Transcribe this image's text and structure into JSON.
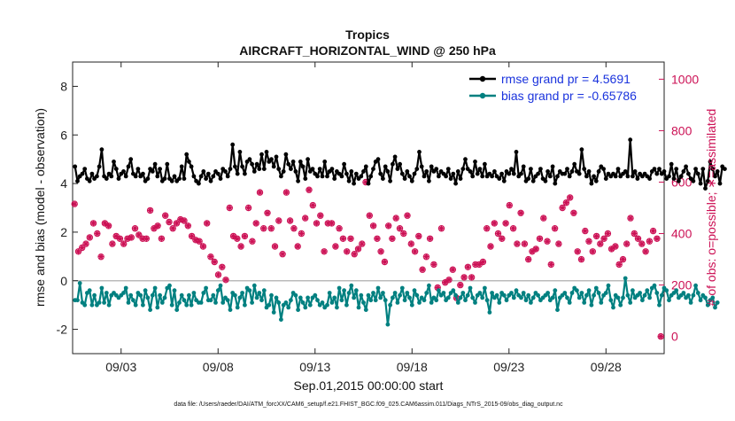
{
  "chart_data": {
    "type": "line",
    "title": "Tropics",
    "subtitle": "AIRCRAFT_HORIZONTAL_WIND @ 250 hPa",
    "xlabel": "Sep.01,2015 00:00:00 start",
    "ylabel_left": "rmse and bias (model - observation)",
    "ylabel_right": "# of obs: o=possible; ∗=assimilated",
    "footnote": "data file: /Users/raeder/DAI/ATM_forcXX/CAM6_setup/f.e21.FHIST_BGC.f09_025.CAM6assim.011/Diags_NTrS_2015-09/obs_diag_output.nc",
    "xlim": [
      0.5,
      31.0
    ],
    "ylim_left": [
      -3,
      9
    ],
    "ylim_right": [
      -66.7,
      1066.7
    ],
    "x_ticks": [
      {
        "x": 3,
        "label": "09/03"
      },
      {
        "x": 8,
        "label": "09/08"
      },
      {
        "x": 13,
        "label": "09/13"
      },
      {
        "x": 18,
        "label": "09/18"
      },
      {
        "x": 23,
        "label": "09/23"
      },
      {
        "x": 28,
        "label": "09/28"
      }
    ],
    "y_ticks_left": [
      "-2",
      "0",
      "2",
      "4",
      "6",
      "8"
    ],
    "y_ticks_left_values": [
      -2,
      0,
      2,
      4,
      6,
      8
    ],
    "y_ticks_right": [
      "0",
      "200",
      "400",
      "600",
      "800",
      "1000"
    ],
    "y_ticks_right_values": [
      0,
      200,
      400,
      600,
      800,
      1000
    ],
    "zero_line": 0,
    "colors": {
      "rmse": "#000000",
      "bias": "#008080",
      "count": "#cc1155",
      "zero": "#bbbbbb"
    },
    "series": [
      {
        "name": "rmse grand pr = 4.5691",
        "axis": "left",
        "values": [
          4.7,
          4.1,
          4.3,
          4.4,
          4.6,
          4.2,
          4.1,
          4.4,
          4.2,
          4.3,
          4.7,
          5.4,
          4.3,
          4.2,
          4.4,
          4.3,
          4.9,
          4.6,
          4.2,
          4.4,
          4.5,
          4.3,
          4.7,
          5.0,
          4.4,
          4.3,
          4.6,
          4.3,
          4.4,
          4.1,
          4.2,
          4.6,
          4.5,
          4.8,
          4.3,
          4.6,
          4.1,
          4.2,
          4.8,
          4.2,
          4.1,
          4.3,
          4.1,
          4.2,
          4.7,
          4.2,
          5.2,
          4.9,
          4.7,
          4.3,
          4.1,
          4.0,
          4.3,
          4.5,
          4.2,
          4.4,
          4.1,
          4.3,
          4.5,
          4.4,
          4.2,
          4.6,
          4.5,
          4.3,
          4.6,
          5.6,
          4.7,
          4.4,
          5.3,
          4.7,
          4.4,
          4.9,
          5.0,
          4.8,
          4.5,
          4.8,
          4.6,
          5.2,
          4.6,
          5.3,
          4.9,
          5.0,
          4.7,
          5.1,
          4.6,
          4.3,
          4.5,
          5.2,
          4.8,
          4.6,
          4.9,
          4.5,
          4.1,
          4.9,
          4.7,
          4.2,
          5.0,
          4.5,
          4.6,
          4.4,
          4.3,
          4.6,
          4.3,
          4.9,
          4.3,
          4.5,
          4.6,
          4.2,
          4.5,
          4.4,
          4.3,
          4.8,
          4.4,
          4.1,
          4.5,
          4.0,
          4.4,
          4.2,
          4.3,
          4.5,
          4.7,
          4.0,
          4.3,
          4.6,
          4.9,
          5.0,
          4.4,
          4.2,
          4.7,
          4.5,
          4.1,
          4.8,
          5.1,
          4.6,
          4.8,
          4.4,
          4.2,
          4.5,
          4.3,
          4.1,
          4.4,
          4.6,
          5.3,
          4.7,
          4.3,
          4.5,
          4.1,
          4.7,
          4.5,
          4.6,
          4.3,
          4.5,
          4.4,
          4.3,
          4.6,
          4.2,
          4.4,
          4.0,
          4.5,
          4.2,
          4.6,
          5.0,
          4.6,
          4.5,
          4.3,
          4.9,
          4.4,
          4.6,
          4.3,
          4.8,
          4.3,
          4.4,
          4.3,
          4.5,
          4.3,
          4.2,
          4.4,
          4.1,
          4.5,
          4.4,
          4.6,
          4.4,
          5.3,
          4.3,
          4.4,
          4.7,
          4.1,
          4.2,
          4.6,
          4.1,
          4.3,
          4.4,
          4.6,
          4.2,
          4.1,
          4.5,
          4.3,
          4.7,
          4.0,
          4.3,
          4.5,
          4.4,
          4.4,
          4.6,
          4.3,
          4.5,
          4.8,
          4.5,
          4.4,
          5.4,
          4.6,
          4.3,
          4.5,
          4.0,
          4.3,
          4.1,
          4.5,
          4.7,
          4.6,
          4.2,
          4.4,
          4.3,
          4.4,
          4.3,
          4.6,
          4.3,
          4.4,
          4.5,
          4.3,
          5.8,
          4.3,
          4.5,
          4.2,
          4.4,
          4.3,
          4.4,
          4.3,
          4.2,
          4.5,
          4.6,
          4.4,
          4.6,
          4.4,
          4.5,
          4.2,
          4.3,
          4.8,
          4.2,
          4.6,
          4.1,
          4.3,
          4.5,
          4.7,
          4.4,
          4.2,
          4.1,
          4.6,
          4.4,
          4.0,
          4.6,
          3.8,
          4.1,
          4.9,
          4.6,
          4.3,
          4.5,
          4.0,
          4.7,
          4.6
        ],
        "x_start": 0.625,
        "x_step": 0.125
      },
      {
        "name": "bias grand pr = -0.65786",
        "axis": "left",
        "values": [
          -0.8,
          -0.8,
          -0.1,
          -0.9,
          -1.0,
          -0.5,
          -0.4,
          -1.0,
          -0.6,
          -1.0,
          -0.9,
          -0.3,
          -0.9,
          -0.5,
          -1.0,
          -0.6,
          -0.5,
          -0.6,
          -0.7,
          -0.6,
          -0.5,
          -0.3,
          -0.9,
          -0.6,
          -0.8,
          -1.0,
          -0.5,
          -0.6,
          -1.0,
          -0.4,
          -0.7,
          -1.2,
          -0.6,
          -0.3,
          -1.1,
          -0.6,
          -0.9,
          -0.7,
          -0.3,
          -0.2,
          -1.0,
          -0.4,
          -1.2,
          -0.9,
          -0.6,
          -0.8,
          -1.0,
          -0.6,
          -1.0,
          -0.5,
          -0.8,
          -0.9,
          -0.9,
          -0.5,
          -0.3,
          -0.8,
          -0.8,
          -0.6,
          -0.9,
          -0.4,
          -0.2,
          -0.9,
          -0.7,
          -0.8,
          -1.2,
          -0.5,
          -0.6,
          -1.1,
          -0.7,
          -0.5,
          -1.0,
          -0.3,
          -0.4,
          -0.9,
          -0.2,
          -0.7,
          -0.5,
          -0.8,
          -0.4,
          -1.1,
          -1.0,
          -0.6,
          -1.3,
          -0.7,
          -0.9,
          -1.6,
          -1.0,
          -0.9,
          -1.1,
          -0.8,
          -0.5,
          -0.6,
          -1.2,
          -0.7,
          -0.9,
          -1.1,
          -0.7,
          -1.0,
          -0.7,
          -0.6,
          -0.8,
          -1.0,
          -0.9,
          -1.1,
          -1.0,
          -0.5,
          -0.9,
          -0.7,
          -1.1,
          -0.3,
          -0.8,
          -0.4,
          -1.0,
          -0.5,
          -0.2,
          -0.7,
          -0.4,
          -1.1,
          -0.6,
          -0.9,
          -1.2,
          -0.6,
          -0.8,
          -0.5,
          -0.8,
          -0.3,
          -0.7,
          -0.5,
          -0.8,
          -1.8,
          -1.0,
          -0.7,
          -0.5,
          -0.9,
          -0.6,
          -0.3,
          -0.8,
          -0.5,
          -0.7,
          -1.0,
          -0.4,
          -0.6,
          -0.9,
          -0.7,
          -0.8,
          -0.5,
          -0.2,
          -0.9,
          -0.7,
          -0.8,
          -0.4,
          -0.6,
          -0.5,
          -0.8,
          -0.7,
          -0.5,
          -0.4,
          -0.6,
          -0.9,
          -0.7,
          -0.5,
          -0.8,
          -0.6,
          -0.3,
          -0.7,
          -0.9,
          -0.6,
          -0.5,
          -0.7,
          -0.3,
          -0.8,
          -1.3,
          -0.5,
          -0.7,
          -0.6,
          -0.9,
          -0.5,
          -0.6,
          -0.8,
          -0.6,
          -0.5,
          -0.7,
          -0.4,
          -0.6,
          -0.7,
          -0.5,
          -0.8,
          -0.6,
          -0.9,
          -0.7,
          -0.5,
          -0.6,
          -0.8,
          -0.7,
          -0.6,
          -0.5,
          -0.8,
          -0.7,
          -0.4,
          -1.2,
          -0.7,
          -0.6,
          -0.5,
          -0.7,
          -0.9,
          -0.5,
          -0.3,
          -0.4,
          -0.7,
          -0.5,
          -0.9,
          -0.6,
          -0.4,
          -1.0,
          -0.6,
          -0.3,
          -0.5,
          -0.9,
          -0.6,
          -0.5,
          -0.2,
          -0.8,
          -1.1,
          -0.6,
          -0.7,
          -1.0,
          -0.7,
          0.1,
          -0.6,
          -0.9,
          -0.4,
          -0.7,
          -0.6,
          -0.5,
          -0.8,
          -0.6,
          -0.4,
          -0.7,
          -0.3,
          -0.2,
          -0.5,
          -1.0,
          -0.6,
          -0.3,
          -0.4,
          -0.8,
          -0.6,
          -0.5,
          -0.4,
          -0.7,
          -0.6,
          -0.5,
          -0.7,
          -0.6,
          -0.9,
          -0.6,
          -0.2,
          -0.5,
          -0.8,
          -0.6,
          -0.7,
          -1.0,
          -0.8,
          -0.7,
          -1.1,
          -0.9
        ],
        "x_start": 0.625,
        "x_step": 0.125
      },
      {
        "name": "# of obs (possible / assimilated)",
        "axis": "right",
        "values": [
          515,
          330,
          345,
          360,
          385,
          440,
          400,
          310,
          440,
          430,
          360,
          390,
          380,
          360,
          380,
          385,
          420,
          395,
          380,
          380,
          490,
          420,
          430,
          380,
          470,
          445,
          420,
          440,
          455,
          450,
          430,
          390,
          375,
          370,
          350,
          440,
          310,
          290,
          240,
          270,
          220,
          500,
          390,
          380,
          350,
          390,
          500,
          370,
          440,
          560,
          420,
          480,
          420,
          350,
          450,
          320,
          560,
          450,
          420,
          350,
          400,
          460,
          570,
          510,
          440,
          470,
          330,
          440,
          440,
          350,
          420,
          380,
          330,
          380,
          320,
          340,
          360,
          600,
          470,
          430,
          380,
          330,
          290,
          430,
          380,
          460,
          420,
          400,
          470,
          360,
          330,
          390,
          260,
          310,
          380,
          280,
          190,
          420,
          210,
          220,
          260,
          150,
          200,
          230,
          270,
          230,
          280,
          280,
          290,
          420,
          350,
          440,
          400,
          380,
          440,
          510,
          420,
          360,
          480,
          360,
          300,
          330,
          340,
          380,
          460,
          370,
          280,
          420,
          360,
          500,
          520,
          540,
          480,
          330,
          300,
          410,
          370,
          330,
          390,
          360,
          380,
          400,
          340,
          350,
          280,
          300,
          360,
          460,
          400,
          380,
          360,
          330,
          370,
          410,
          380,
          0
        ],
        "x_start": 0.6,
        "x_step": 0.195
      }
    ]
  },
  "legend": {
    "rmse_label": "rmse grand pr = 4.5691",
    "bias_label": "bias grand pr = -0.65786"
  }
}
